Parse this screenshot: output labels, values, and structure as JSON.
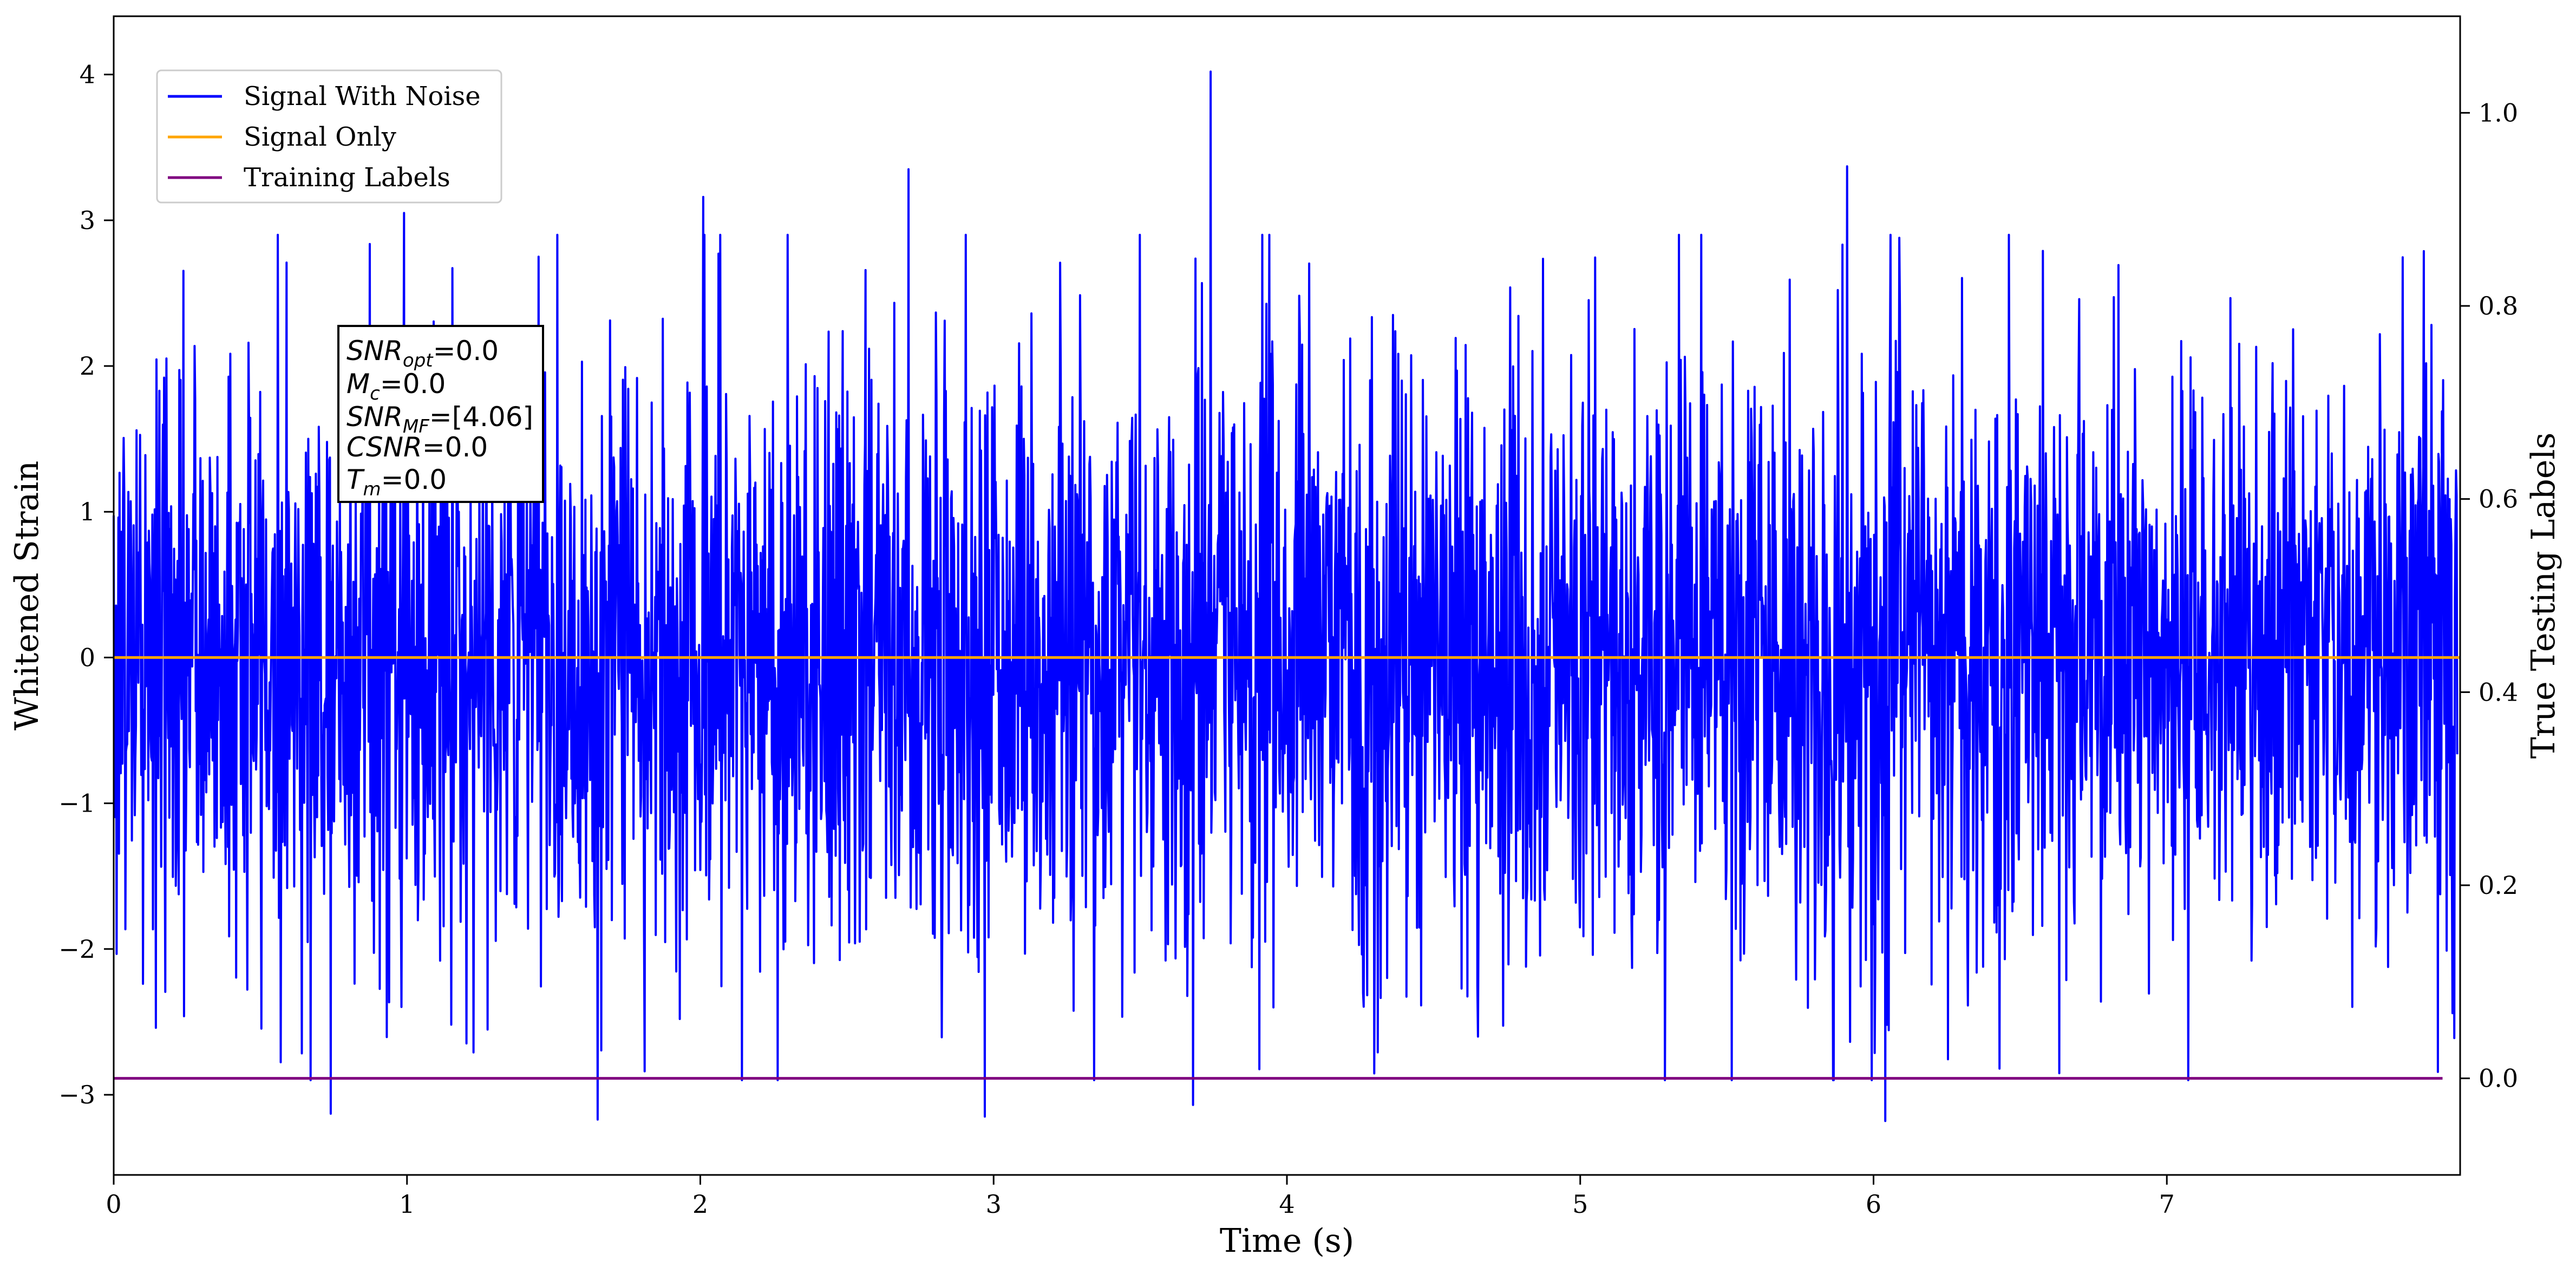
{
  "chart_data": {
    "type": "line",
    "xlabel": "Time (s)",
    "ylabel": "Whitened Strain",
    "y2label": "True Testing Labels",
    "xlim": [
      0,
      8.0
    ],
    "ylim": [
      -3.55,
      4.4
    ],
    "y2lim": [
      -0.1,
      1.1
    ],
    "x_ticks": [
      0,
      1,
      2,
      3,
      4,
      5,
      6,
      7
    ],
    "y_ticks": [
      -3,
      -2,
      -1,
      0,
      1,
      2,
      3,
      4
    ],
    "y_tick_labels": [
      "−3",
      "−2",
      "−1",
      "0",
      "1",
      "2",
      "3",
      "4"
    ],
    "y2_ticks": [
      0.0,
      0.2,
      0.4,
      0.6,
      0.8,
      1.0
    ],
    "y2_tick_labels": [
      "0.0",
      "0.2",
      "0.4",
      "0.6",
      "0.8",
      "1.0"
    ],
    "grid": false,
    "legend_position": "top-left",
    "series": [
      {
        "name": "Signal With Noise",
        "color": "#0000ff",
        "axis": "left",
        "x_range": [
          0,
          7.99
        ],
        "description_values": {
          "core_amplitude": 1.05,
          "peaks": [
            [
              0.74,
              -3.13
            ],
            [
              1.65,
              -3.17
            ],
            [
              2.97,
              -3.15
            ],
            [
              3.68,
              -3.07
            ],
            [
              3.74,
              4.02
            ],
            [
              6.04,
              -3.18
            ],
            [
              2.71,
              3.35
            ],
            [
              5.91,
              3.37
            ],
            [
              0.99,
              3.05
            ],
            [
              2.01,
              3.16
            ]
          ]
        }
      },
      {
        "name": "Signal Only",
        "color": "#ffa500",
        "axis": "left",
        "x": [
          0,
          8.0
        ],
        "y": [
          0,
          0
        ]
      },
      {
        "name": "Training Labels",
        "color": "#800080",
        "axis": "right",
        "x": [
          0,
          7.94
        ],
        "y": [
          0,
          0
        ]
      }
    ],
    "annotation": {
      "lines": [
        {
          "main": "SNR",
          "sub": "opt",
          "value": "=0.0"
        },
        {
          "main": "M",
          "sub": "c",
          "value": "=0.0"
        },
        {
          "main": "SNR",
          "sub": "MF",
          "value": "=[4.06]"
        },
        {
          "main": "CSNR",
          "sub": "",
          "value": "=0.0"
        },
        {
          "main": "T",
          "sub": "m",
          "value": "=0.0"
        }
      ]
    }
  }
}
